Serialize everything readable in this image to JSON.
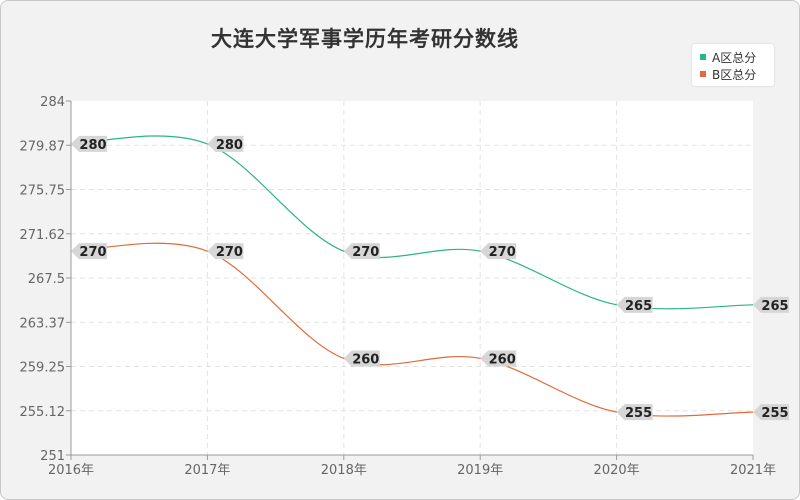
{
  "chart_data": {
    "type": "line",
    "title": "大连大学军事学历年考研分数线",
    "categories": [
      "2016年",
      "2017年",
      "2018年",
      "2019年",
      "2020年",
      "2021年"
    ],
    "series": [
      {
        "name": "A区总分",
        "values": [
          280,
          280,
          270,
          270,
          265,
          265
        ],
        "color": "#2bb38a"
      },
      {
        "name": "B区总分",
        "values": [
          270,
          270,
          260,
          260,
          255,
          255
        ],
        "color": "#e06a3b"
      }
    ],
    "y_ticks": [
      "284",
      "279.87",
      "275.75",
      "271.62",
      "267.5",
      "263.37",
      "259.25",
      "255.12",
      "251"
    ],
    "ylim": [
      251,
      284
    ],
    "grid": true,
    "legend": "top-right"
  }
}
